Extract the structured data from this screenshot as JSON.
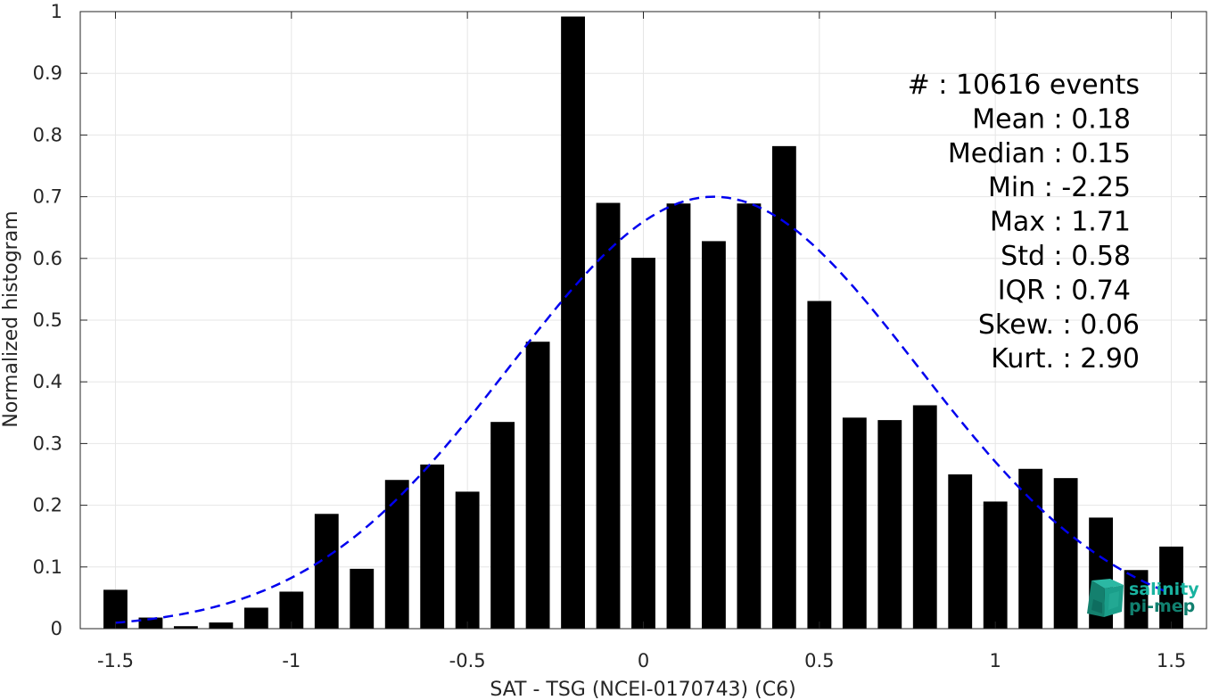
{
  "chart_data": {
    "type": "bar",
    "xlabel": "SAT - TSG (NCEI-0170743) (C6)",
    "ylabel": "Normalized histogram",
    "xlim": [
      -1.6,
      1.6
    ],
    "ylim": [
      0,
      1
    ],
    "xticks": [
      -1.5,
      -1,
      -0.5,
      0,
      0.5,
      1,
      1.5
    ],
    "xtick_labels": [
      "-1.5",
      "-1",
      "-0.5",
      "0",
      "0.5",
      "1",
      "1.5"
    ],
    "yticks": [
      0,
      0.1,
      0.2,
      0.3,
      0.4,
      0.5,
      0.6,
      0.7,
      0.8,
      0.9,
      1
    ],
    "ytick_labels": [
      "0",
      "0.1",
      "0.2",
      "0.3",
      "0.4",
      "0.5",
      "0.6",
      "0.7",
      "0.8",
      "0.9",
      "1"
    ],
    "grid": true,
    "bar_color": "#000000",
    "bins": [
      {
        "x": -1.5,
        "y": 0.063
      },
      {
        "x": -1.4,
        "y": 0.018
      },
      {
        "x": -1.3,
        "y": 0.004
      },
      {
        "x": -1.2,
        "y": 0.01
      },
      {
        "x": -1.1,
        "y": 0.034
      },
      {
        "x": -1.0,
        "y": 0.06
      },
      {
        "x": -0.9,
        "y": 0.186
      },
      {
        "x": -0.8,
        "y": 0.097
      },
      {
        "x": -0.7,
        "y": 0.241
      },
      {
        "x": -0.6,
        "y": 0.266
      },
      {
        "x": -0.5,
        "y": 0.222
      },
      {
        "x": -0.4,
        "y": 0.335
      },
      {
        "x": -0.3,
        "y": 0.465
      },
      {
        "x": -0.2,
        "y": 0.992
      },
      {
        "x": -0.1,
        "y": 0.69
      },
      {
        "x": 0.0,
        "y": 0.601
      },
      {
        "x": 0.1,
        "y": 0.689
      },
      {
        "x": 0.2,
        "y": 0.628
      },
      {
        "x": 0.3,
        "y": 0.689
      },
      {
        "x": 0.4,
        "y": 0.782
      },
      {
        "x": 0.5,
        "y": 0.531
      },
      {
        "x": 0.6,
        "y": 0.342
      },
      {
        "x": 0.7,
        "y": 0.338
      },
      {
        "x": 0.8,
        "y": 0.362
      },
      {
        "x": 0.9,
        "y": 0.25
      },
      {
        "x": 1.0,
        "y": 0.206
      },
      {
        "x": 1.1,
        "y": 0.259
      },
      {
        "x": 1.2,
        "y": 0.244
      },
      {
        "x": 1.3,
        "y": 0.18
      },
      {
        "x": 1.4,
        "y": 0.095
      },
      {
        "x": 1.5,
        "y": 0.133
      }
    ],
    "fit_curve": {
      "type": "gaussian",
      "color": "#0000ee",
      "style": "dashed",
      "mean": 0.2,
      "std": 0.58,
      "peak": 0.7,
      "x_range": [
        -1.5,
        1.5
      ]
    },
    "stats": [
      {
        "label": "#  : 10616 events"
      },
      {
        "label": "Mean : 0.18"
      },
      {
        "label": "Median : 0.15"
      },
      {
        "label": "Min : -2.25"
      },
      {
        "label": "Max : 1.71"
      },
      {
        "label": "Std : 0.58"
      },
      {
        "label": "IQR : 0.74"
      },
      {
        "label": "Skew. : 0.06"
      },
      {
        "label": "Kurt. : 2.90"
      }
    ]
  },
  "logo": {
    "line1": "salinity",
    "line2": "pi-mep",
    "color_primary": "#19b3a0",
    "color_secondary": "#11806f"
  }
}
